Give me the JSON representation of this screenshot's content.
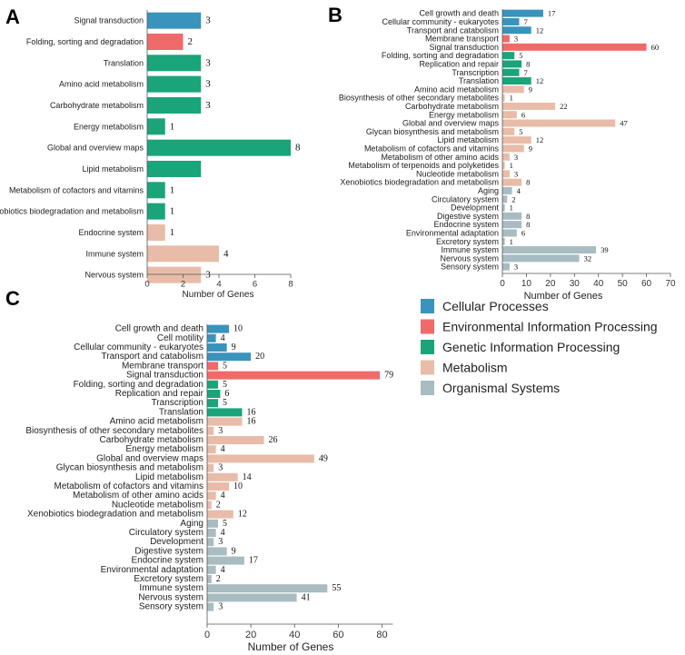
{
  "colors": {
    "Cellular Processes": "#3a93bd",
    "Environmental Information Processing": "#f16a6a",
    "Genetic Information Processing": "#1aa47a",
    "Metabolism": "#e8bca8",
    "Organismal Systems": "#a9bcc2"
  },
  "legend": {
    "items": [
      "Cellular Processes",
      "Environmental Information Processing",
      "Genetic Information Processing",
      "Metabolism",
      "Organismal Systems"
    ]
  },
  "chart_data": [
    {
      "panel": "A",
      "type": "bar",
      "orientation": "horizontal",
      "xlabel": "Number of Genes",
      "xlim": [
        0,
        8
      ],
      "xticks": [
        0,
        2,
        4,
        6,
        8
      ],
      "categories": [
        "Signal transduction",
        "Folding, sorting and degradation",
        "Translation",
        "Amino acid metabolism",
        "Carbohydrate metabolism",
        "Energy metabolism",
        "Global and overview maps",
        "Lipid metabolism",
        "Metabolism of cofactors and vitamins",
        "Xenobiotics biodegradation and metabolism",
        "Endocrine system",
        "Immune system",
        "Nervous system"
      ],
      "values": [
        3,
        2,
        3,
        3,
        3,
        1,
        8,
        3,
        1,
        1,
        1,
        4,
        3
      ],
      "labels": [
        "3",
        "2",
        "3",
        "3",
        "3",
        "1",
        "8",
        "",
        "1",
        "1",
        "1",
        "4",
        "3"
      ],
      "groups": [
        "Cellular Processes",
        "Environmental Information Processing",
        "Genetic Information Processing",
        "Genetic Information Processing",
        "Genetic Information Processing",
        "Genetic Information Processing",
        "Genetic Information Processing",
        "Genetic Information Processing",
        "Genetic Information Processing",
        "Genetic Information Processing",
        "Metabolism",
        "Metabolism",
        "Metabolism"
      ]
    },
    {
      "panel": "B",
      "type": "bar",
      "orientation": "horizontal",
      "xlabel": "Number of Genes",
      "xlim": [
        0,
        70
      ],
      "xticks": [
        0,
        10,
        20,
        30,
        40,
        50,
        60,
        70
      ],
      "categories": [
        "Cell growth and death",
        "Cellular community - eukaryotes",
        "Transport and catabolism",
        "Membrane transport",
        "Signal transduction",
        "Folding, sorting and degradation",
        "Replication and repair",
        "Transcription",
        "Translation",
        "Amino acid metabolism",
        "Biosynthesis of other secondary metabolites",
        "Carbohydrate metabolism",
        "Energy metabolism",
        "Global and overview maps",
        "Glycan biosynthesis and metabolism",
        "Lipid metabolism",
        "Metabolism of cofactors and vitamins",
        "Metabolism of other amino acids",
        "Metabolism of terpenoids and polyketides",
        "Nucleotide metabolism",
        "Xenobiotics biodegradation and metabolism",
        "Aging",
        "Circulatory system",
        "Development",
        "Digestive system",
        "Endocrine system",
        "Environmental adaptation",
        "Excretory system",
        "Immune system",
        "Nervous system",
        "Sensory system"
      ],
      "values": [
        17,
        7,
        12,
        3,
        60,
        5,
        8,
        7,
        12,
        9,
        1,
        22,
        6,
        47,
        5,
        12,
        9,
        3,
        1,
        3,
        8,
        4,
        2,
        1,
        8,
        8,
        6,
        1,
        39,
        32,
        3
      ],
      "labels": [
        "17",
        "7",
        "12",
        "3",
        "60",
        "5",
        "8",
        "7",
        "12",
        "9",
        "1",
        "22",
        "6",
        "47",
        "5",
        "12",
        "9",
        "3",
        "1",
        "3",
        "8",
        "4",
        "2",
        "1",
        "8",
        "8",
        "6",
        "1",
        "39",
        "32",
        "3"
      ],
      "groups": [
        "Cellular Processes",
        "Cellular Processes",
        "Cellular Processes",
        "Environmental Information Processing",
        "Environmental Information Processing",
        "Genetic Information Processing",
        "Genetic Information Processing",
        "Genetic Information Processing",
        "Genetic Information Processing",
        "Metabolism",
        "Metabolism",
        "Metabolism",
        "Metabolism",
        "Metabolism",
        "Metabolism",
        "Metabolism",
        "Metabolism",
        "Metabolism",
        "Metabolism",
        "Metabolism",
        "Metabolism",
        "Organismal Systems",
        "Organismal Systems",
        "Organismal Systems",
        "Organismal Systems",
        "Organismal Systems",
        "Organismal Systems",
        "Organismal Systems",
        "Organismal Systems",
        "Organismal Systems",
        "Organismal Systems"
      ]
    },
    {
      "panel": "C",
      "type": "bar",
      "orientation": "horizontal",
      "xlabel": "Number of Genes",
      "xlim": [
        0,
        85
      ],
      "xticks": [
        0,
        20,
        40,
        60,
        80
      ],
      "categories": [
        "Cell growth and death",
        "Cell motility",
        "Cellular community - eukaryotes",
        "Transport and catabolism",
        "Membrane transport",
        "Signal transduction",
        "Folding, sorting and degradation",
        "Replication and repair",
        "Transcription",
        "Translation",
        "Amino acid metabolism",
        "Biosynthesis of other secondary metabolites",
        "Carbohydrate metabolism",
        "Energy metabolism",
        "Global and overview maps",
        "Glycan biosynthesis and metabolism",
        "Lipid metabolism",
        "Metabolism of cofactors and vitamins",
        "Metabolism of other amino acids",
        "Nucleotide metabolism",
        "Xenobiotics biodegradation and metabolism",
        "Aging",
        "Circulatory system",
        "Development",
        "Digestive system",
        "Endocrine system",
        "Environmental adaptation",
        "Excretory system",
        "Immune system",
        "Nervous system",
        "Sensory system"
      ],
      "values": [
        10,
        4,
        9,
        20,
        5,
        79,
        5,
        6,
        5,
        16,
        16,
        3,
        26,
        4,
        49,
        3,
        14,
        10,
        4,
        2,
        12,
        5,
        4,
        3,
        9,
        17,
        4,
        2,
        55,
        41,
        3
      ],
      "labels": [
        "10",
        "4",
        "9",
        "20",
        "5",
        "79",
        "5",
        "6",
        "5",
        "16",
        "16",
        "3",
        "26",
        "4",
        "49",
        "3",
        "14",
        "10",
        "4",
        "2",
        "12",
        "5",
        "4",
        "3",
        "9",
        "17",
        "4",
        "2",
        "55",
        "41",
        "3"
      ],
      "groups": [
        "Cellular Processes",
        "Cellular Processes",
        "Cellular Processes",
        "Cellular Processes",
        "Environmental Information Processing",
        "Environmental Information Processing",
        "Genetic Information Processing",
        "Genetic Information Processing",
        "Genetic Information Processing",
        "Genetic Information Processing",
        "Metabolism",
        "Metabolism",
        "Metabolism",
        "Metabolism",
        "Metabolism",
        "Metabolism",
        "Metabolism",
        "Metabolism",
        "Metabolism",
        "Metabolism",
        "Metabolism",
        "Organismal Systems",
        "Organismal Systems",
        "Organismal Systems",
        "Organismal Systems",
        "Organismal Systems",
        "Organismal Systems",
        "Organismal Systems",
        "Organismal Systems",
        "Organismal Systems",
        "Organismal Systems"
      ]
    }
  ]
}
